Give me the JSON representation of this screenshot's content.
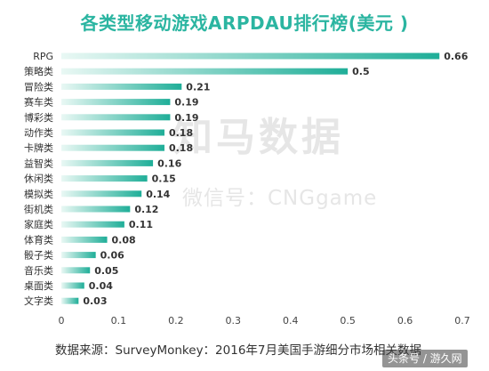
{
  "title": "各类型移动游戏ARPDAU排行榜(美元 )",
  "footer": "数据来源：SurveyMonkey：2016年7月美国手游细分市场相关数据",
  "watermark": {
    "main": "知马数据",
    "sub": "微信号：CNGgame"
  },
  "source_tag": "头条号 / 游久网",
  "colors": {
    "title": "#2bb5a1",
    "bar_start": "#e9f8f4",
    "bar_end": "#1fae98",
    "text": "#333333"
  },
  "chart_data": {
    "type": "bar",
    "orientation": "horizontal",
    "title": "各类型移动游戏ARPDAU排行榜(美元 )",
    "categories": [
      "RPG",
      "策略类",
      "冒险类",
      "赛车类",
      "博彩类",
      "动作类",
      "卡牌类",
      "益智类",
      "休闲类",
      "模拟类",
      "街机类",
      "家庭类",
      "体育类",
      "骰子类",
      "音乐类",
      "桌面类",
      "文字类"
    ],
    "values": [
      0.66,
      0.5,
      0.21,
      0.19,
      0.19,
      0.18,
      0.18,
      0.16,
      0.15,
      0.14,
      0.12,
      0.11,
      0.08,
      0.06,
      0.05,
      0.04,
      0.03
    ],
    "xlim": [
      0,
      0.7
    ],
    "xticks": [
      "0",
      "0.1",
      "0.2",
      "0.3",
      "0.4",
      "0.5",
      "0.6",
      "0.7"
    ],
    "grid": false,
    "legend": "none"
  }
}
